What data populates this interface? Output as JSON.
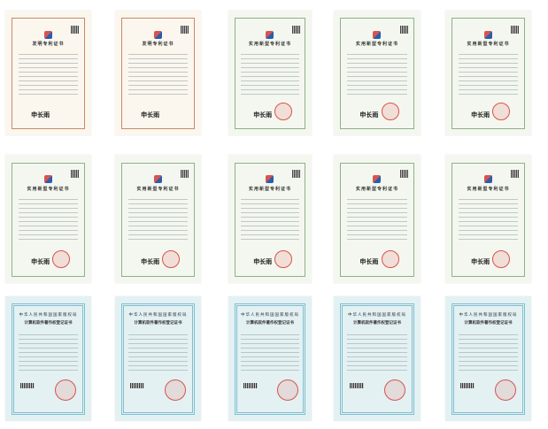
{
  "certificates": [
    {
      "type": "invent",
      "title": "发明专利证书"
    },
    {
      "type": "invent",
      "title": "发明专利证书"
    },
    {
      "type": "utility",
      "title": "实用新型专利证书"
    },
    {
      "type": "utility",
      "title": "实用新型专利证书"
    },
    {
      "type": "utility",
      "title": "实用新型专利证书"
    },
    {
      "type": "utility",
      "title": "实用新型专利证书"
    },
    {
      "type": "utility",
      "title": "实用新型专利证书"
    },
    {
      "type": "utility",
      "title": "实用新型专利证书"
    },
    {
      "type": "utility",
      "title": "实用新型专利证书"
    },
    {
      "type": "utility",
      "title": "实用新型专利证书"
    },
    {
      "type": "soft",
      "title": "计算机软件著作权登记证书",
      "issuer": "中华人民共和国国家版权局"
    },
    {
      "type": "soft",
      "title": "计算机软件著作权登记证书",
      "issuer": "中华人民共和国国家版权局"
    },
    {
      "type": "soft",
      "title": "计算机软件著作权登记证书",
      "issuer": "中华人民共和国国家版权局"
    },
    {
      "type": "soft",
      "title": "计算机软件著作权登记证书",
      "issuer": "中华人民共和国国家版权局"
    },
    {
      "type": "soft",
      "title": "计算机软件著作权登记证书",
      "issuer": "中华人民共和国国家版权局"
    }
  ],
  "signature": "申长雨",
  "colors": {
    "invent_border": "#c98a6a",
    "utility_border": "#8fb08a",
    "soft_border": "#7fbfd0",
    "seal": "#d9534f"
  }
}
